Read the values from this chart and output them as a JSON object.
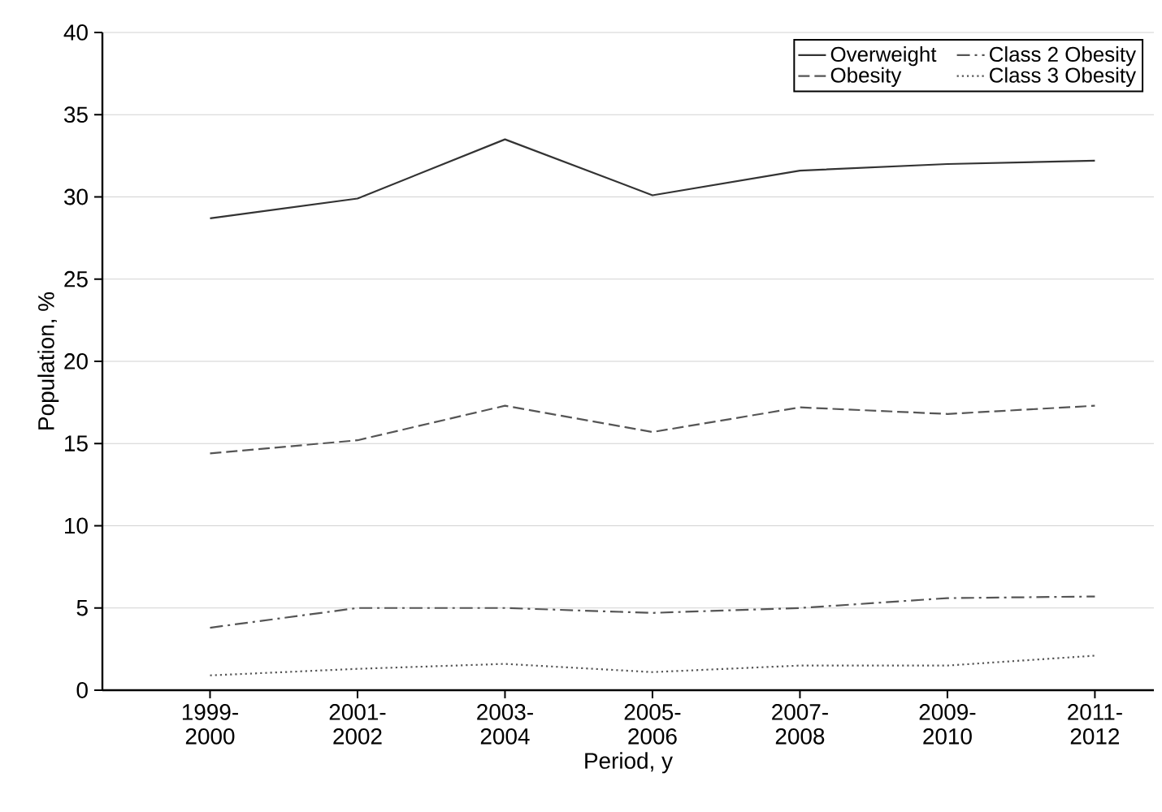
{
  "chart_data": {
    "type": "line",
    "xlabel": "Period, y",
    "ylabel": "Population, %",
    "categories": [
      "1999-2000",
      "2001-2002",
      "2003-2004",
      "2005-2006",
      "2007-2008",
      "2009-2010",
      "2011-2012"
    ],
    "series": [
      {
        "name": "Overweight",
        "color": "#333333",
        "line_style": "solid",
        "values": [
          28.7,
          29.9,
          33.5,
          30.1,
          31.6,
          32.0,
          32.2
        ]
      },
      {
        "name": "Obesity",
        "color": "#555555",
        "line_style": "dashed",
        "values": [
          14.4,
          15.2,
          17.3,
          15.7,
          17.2,
          16.8,
          17.3
        ]
      },
      {
        "name": "Class 2 Obesity",
        "color": "#555555",
        "line_style": "dashdot",
        "values": [
          3.8,
          5.0,
          5.0,
          4.7,
          5.0,
          5.6,
          5.7
        ]
      },
      {
        "name": "Class 3 Obesity",
        "color": "#555555",
        "line_style": "dotted",
        "values": [
          0.9,
          1.3,
          1.6,
          1.1,
          1.5,
          1.5,
          2.1
        ]
      }
    ],
    "ylim": [
      0,
      40
    ],
    "yticks": [
      0,
      5,
      10,
      15,
      20,
      25,
      30,
      35,
      40
    ],
    "grid": "y",
    "legend": "top right",
    "marker": "none"
  }
}
